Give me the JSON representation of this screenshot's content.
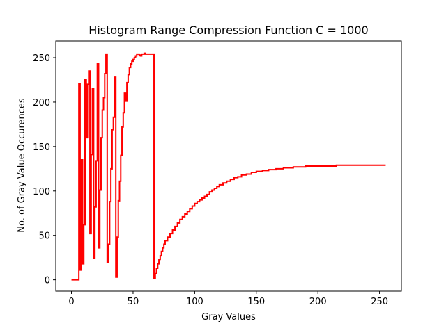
{
  "chart_data": {
    "type": "line",
    "step": true,
    "title": "Histogram Range Compression Function C = 1000",
    "xlabel": "Gray Values",
    "ylabel": "No. of Gray Value Occurences",
    "xlim": [
      -12.75,
      267.75
    ],
    "ylim": [
      -12.8,
      268.8
    ],
    "xticks": [
      0,
      50,
      100,
      150,
      200,
      250
    ],
    "yticks": [
      0,
      50,
      100,
      150,
      200,
      250
    ],
    "grid": false,
    "line_color": "#ff0000",
    "series": [
      {
        "x": [
          0,
          6,
          7,
          8,
          9,
          10,
          11,
          12,
          13,
          14,
          15,
          16,
          17,
          18,
          19,
          20,
          21,
          22,
          23,
          24,
          25,
          26,
          27,
          28,
          29,
          30,
          31,
          32,
          33,
          34,
          35,
          36,
          37,
          38,
          39,
          40,
          41,
          42,
          43,
          44,
          45,
          46,
          47,
          48,
          49,
          50,
          51,
          52,
          53,
          54,
          55,
          56,
          57,
          58,
          59,
          60,
          61,
          62,
          63,
          64,
          65,
          66,
          67,
          68,
          69,
          70,
          71,
          72,
          73,
          74,
          75,
          76,
          78,
          80,
          82,
          84,
          86,
          88,
          90,
          92,
          94,
          96,
          98,
          100,
          102,
          104,
          106,
          108,
          110,
          112,
          114,
          116,
          118,
          120,
          123,
          126,
          129,
          132,
          135,
          138,
          142,
          146,
          150,
          155,
          160,
          166,
          172,
          180,
          190,
          202,
          215,
          230,
          245,
          255
        ],
        "y": [
          0,
          221,
          11,
          135,
          18,
          62,
          225,
          160,
          220,
          235,
          52,
          141,
          215,
          24,
          82,
          134,
          243,
          36,
          101,
          160,
          191,
          205,
          232,
          254,
          20,
          40,
          88,
          125,
          169,
          183,
          228,
          3,
          48,
          89,
          111,
          140,
          172,
          188,
          210,
          201,
          222,
          231,
          239,
          243,
          246,
          248,
          250,
          252,
          254,
          254,
          253,
          252,
          254,
          254,
          255,
          254,
          254,
          254,
          254,
          254,
          254,
          254,
          2,
          7,
          13,
          18,
          23,
          27,
          32,
          36,
          40,
          44,
          48,
          52,
          56,
          60,
          64,
          68,
          71,
          74,
          77,
          80,
          83,
          86,
          88,
          90,
          92,
          94,
          96,
          99,
          101,
          103,
          105,
          107,
          109,
          111,
          113,
          115,
          116,
          118,
          119,
          121,
          122,
          123,
          124,
          125,
          126,
          127,
          128,
          128,
          129,
          129,
          129,
          129
        ]
      }
    ]
  }
}
